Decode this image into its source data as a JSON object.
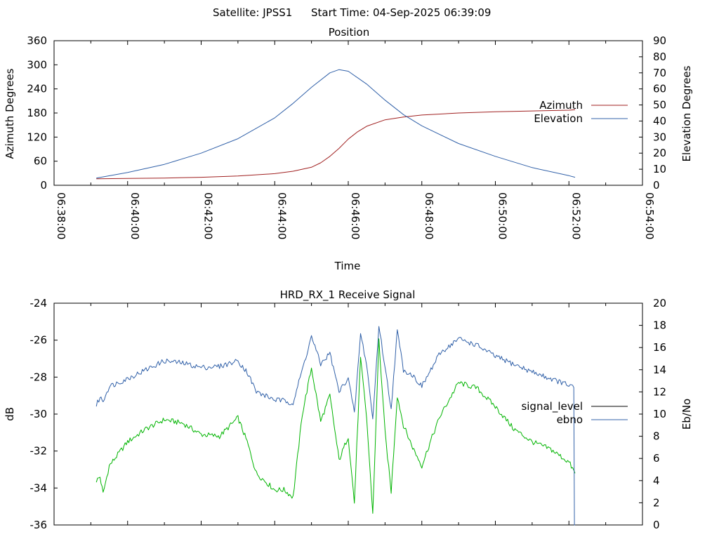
{
  "header": {
    "satellite_label": "Satellite: JPSS1",
    "start_label": "Start Time: 04-Sep-2025 06:39:09"
  },
  "colors": {
    "azimuth": "#a02020",
    "elevation": "#3060a8",
    "signal_level": "#00b400",
    "ebno": "#3060a8",
    "axes": "#000000",
    "background": "#ffffff"
  },
  "chart_data": [
    {
      "type": "line",
      "title": "Position",
      "xlabel": "Time",
      "ylabel": "Azimuth Degrees",
      "y2label": "Elevation Degrees",
      "xlim": [
        "06:38:00",
        "06:54:00"
      ],
      "ylim": [
        0,
        360
      ],
      "y2lim": [
        0,
        90
      ],
      "x_ticks": [
        "06:38:00",
        "06:40:00",
        "06:42:00",
        "06:44:00",
        "06:46:00",
        "06:48:00",
        "06:50:00",
        "06:52:00",
        "06:54:00"
      ],
      "y_ticks": [
        "0",
        "60",
        "120",
        "180",
        "240",
        "300",
        "360"
      ],
      "y2_ticks": [
        "0",
        "10",
        "20",
        "30",
        "40",
        "50",
        "60",
        "70",
        "80",
        "90"
      ],
      "legend_position": "right",
      "grid": false,
      "series": [
        {
          "name": "Azimuth",
          "axis": "y",
          "x": [
            "06:39:09",
            "06:40:00",
            "06:41:00",
            "06:42:00",
            "06:43:00",
            "06:44:00",
            "06:44:30",
            "06:45:00",
            "06:45:15",
            "06:45:30",
            "06:45:45",
            "06:46:00",
            "06:46:15",
            "06:46:30",
            "06:47:00",
            "06:47:30",
            "06:48:00",
            "06:49:00",
            "06:50:00",
            "06:51:00",
            "06:52:00",
            "06:52:10"
          ],
          "values": [
            16,
            17,
            18,
            20,
            23,
            29,
            35,
            45,
            56,
            72,
            92,
            115,
            133,
            147,
            163,
            170,
            175,
            180,
            183,
            185,
            187,
            188
          ]
        },
        {
          "name": "Elevation",
          "axis": "y2",
          "x": [
            "06:39:09",
            "06:40:00",
            "06:41:00",
            "06:42:00",
            "06:43:00",
            "06:44:00",
            "06:44:30",
            "06:45:00",
            "06:45:30",
            "06:45:45",
            "06:46:00",
            "06:46:30",
            "06:47:00",
            "06:47:30",
            "06:48:00",
            "06:49:00",
            "06:50:00",
            "06:51:00",
            "06:52:00",
            "06:52:10"
          ],
          "values": [
            4.5,
            8,
            13,
            20,
            29,
            42,
            51,
            61,
            70,
            72,
            71,
            63,
            53,
            44,
            37,
            26,
            18,
            11,
            6,
            5
          ]
        }
      ]
    },
    {
      "type": "line",
      "title": "HRD_RX_1 Receive Signal",
      "xlabel": "",
      "ylabel": "dB",
      "y2label": "Eb/No",
      "xlim": [
        "06:38:00",
        "06:54:00"
      ],
      "ylim": [
        -36,
        -24
      ],
      "y2lim": [
        0,
        20
      ],
      "y_ticks": [
        "-36",
        "-34",
        "-32",
        "-30",
        "-28",
        "-26",
        "-24"
      ],
      "y2_ticks": [
        "0",
        "2",
        "4",
        "6",
        "8",
        "10",
        "12",
        "14",
        "16",
        "18",
        "20"
      ],
      "legend_position": "right",
      "grid": false,
      "series": [
        {
          "name": "signal_level",
          "axis": "y",
          "x": [
            "06:39:09",
            "06:39:15",
            "06:39:20",
            "06:39:30",
            "06:40:00",
            "06:40:30",
            "06:41:00",
            "06:41:30",
            "06:42:00",
            "06:42:30",
            "06:43:00",
            "06:43:15",
            "06:43:30",
            "06:44:00",
            "06:44:15",
            "06:44:30",
            "06:44:45",
            "06:45:00",
            "06:45:15",
            "06:45:30",
            "06:45:45",
            "06:46:00",
            "06:46:10",
            "06:46:20",
            "06:46:30",
            "06:46:40",
            "06:46:50",
            "06:47:00",
            "06:47:10",
            "06:47:20",
            "06:47:30",
            "06:47:45",
            "06:48:00",
            "06:48:15",
            "06:48:30",
            "06:49:00",
            "06:49:30",
            "06:50:00",
            "06:50:30",
            "06:51:00",
            "06:51:30",
            "06:52:00",
            "06:52:10"
          ],
          "values": [
            -33.6,
            -33.4,
            -34.3,
            -32.8,
            -31.5,
            -30.8,
            -30.3,
            -30.5,
            -31.1,
            -31.2,
            -30.2,
            -31.5,
            -33.2,
            -34.1,
            -34.1,
            -34.5,
            -30.0,
            -27.5,
            -30.4,
            -29.0,
            -32.5,
            -31.2,
            -34.8,
            -27.0,
            -30.2,
            -35.4,
            -26.0,
            -31.0,
            -34.2,
            -29.0,
            -30.6,
            -31.8,
            -32.8,
            -31.4,
            -30.1,
            -28.3,
            -28.6,
            -29.6,
            -30.8,
            -31.5,
            -31.9,
            -32.6,
            -33.2
          ]
        },
        {
          "name": "ebno",
          "axis": "y2",
          "x": [
            "06:39:09",
            "06:39:15",
            "06:39:20",
            "06:39:30",
            "06:40:00",
            "06:40:30",
            "06:41:00",
            "06:41:30",
            "06:42:00",
            "06:42:30",
            "06:43:00",
            "06:43:15",
            "06:43:30",
            "06:44:00",
            "06:44:15",
            "06:44:30",
            "06:44:45",
            "06:45:00",
            "06:45:15",
            "06:45:30",
            "06:45:45",
            "06:46:00",
            "06:46:10",
            "06:46:20",
            "06:46:30",
            "06:46:40",
            "06:46:50",
            "06:47:00",
            "06:47:10",
            "06:47:20",
            "06:47:30",
            "06:47:45",
            "06:48:00",
            "06:48:15",
            "06:48:30",
            "06:49:00",
            "06:49:30",
            "06:50:00",
            "06:50:30",
            "06:51:00",
            "06:51:30",
            "06:52:00",
            "06:52:08",
            "06:52:09",
            "06:52:10"
          ],
          "values": [
            10.8,
            11.5,
            11.2,
            12.5,
            13.2,
            14.0,
            14.8,
            14.6,
            14.2,
            14.3,
            14.8,
            13.8,
            12.0,
            11.3,
            11.2,
            11.0,
            14.0,
            17.0,
            14.5,
            15.5,
            12.0,
            13.3,
            10.0,
            17.2,
            14.5,
            9.5,
            18.0,
            14.2,
            10.5,
            17.5,
            14.0,
            13.5,
            12.5,
            14.0,
            15.5,
            16.8,
            16.2,
            15.2,
            14.5,
            13.8,
            13.2,
            12.6,
            12.4,
            0.0,
            0.0
          ]
        }
      ]
    }
  ]
}
